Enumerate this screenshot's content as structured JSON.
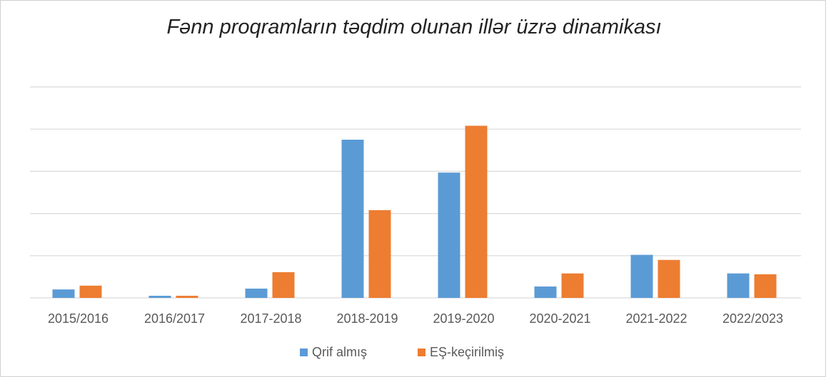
{
  "chart_data": {
    "type": "bar",
    "title": "Fənn proqramların təqdim olunan illər üzrə dinamikası",
    "categories": [
      "2015/2016",
      "2016/2017",
      "2017-2018",
      "2018-2019",
      "2019-2020",
      "2020-2021",
      "2021-2022",
      "2022/2023"
    ],
    "series": [
      {
        "name": "Qrif almış",
        "color": "#5b9bd5",
        "values": [
          2.0,
          0.5,
          2.2,
          37.5,
          29.7,
          2.7,
          10.2,
          5.8
        ]
      },
      {
        "name": "EŞ-keçirilmiş",
        "color": "#ed7d31",
        "values": [
          2.9,
          0.5,
          6.1,
          20.8,
          40.8,
          5.8,
          9.0,
          5.6
        ]
      }
    ],
    "ylim": [
      0,
      50
    ],
    "yticks": [
      0,
      10,
      20,
      30,
      40,
      50
    ],
    "grid": true,
    "legend": "bottom"
  }
}
